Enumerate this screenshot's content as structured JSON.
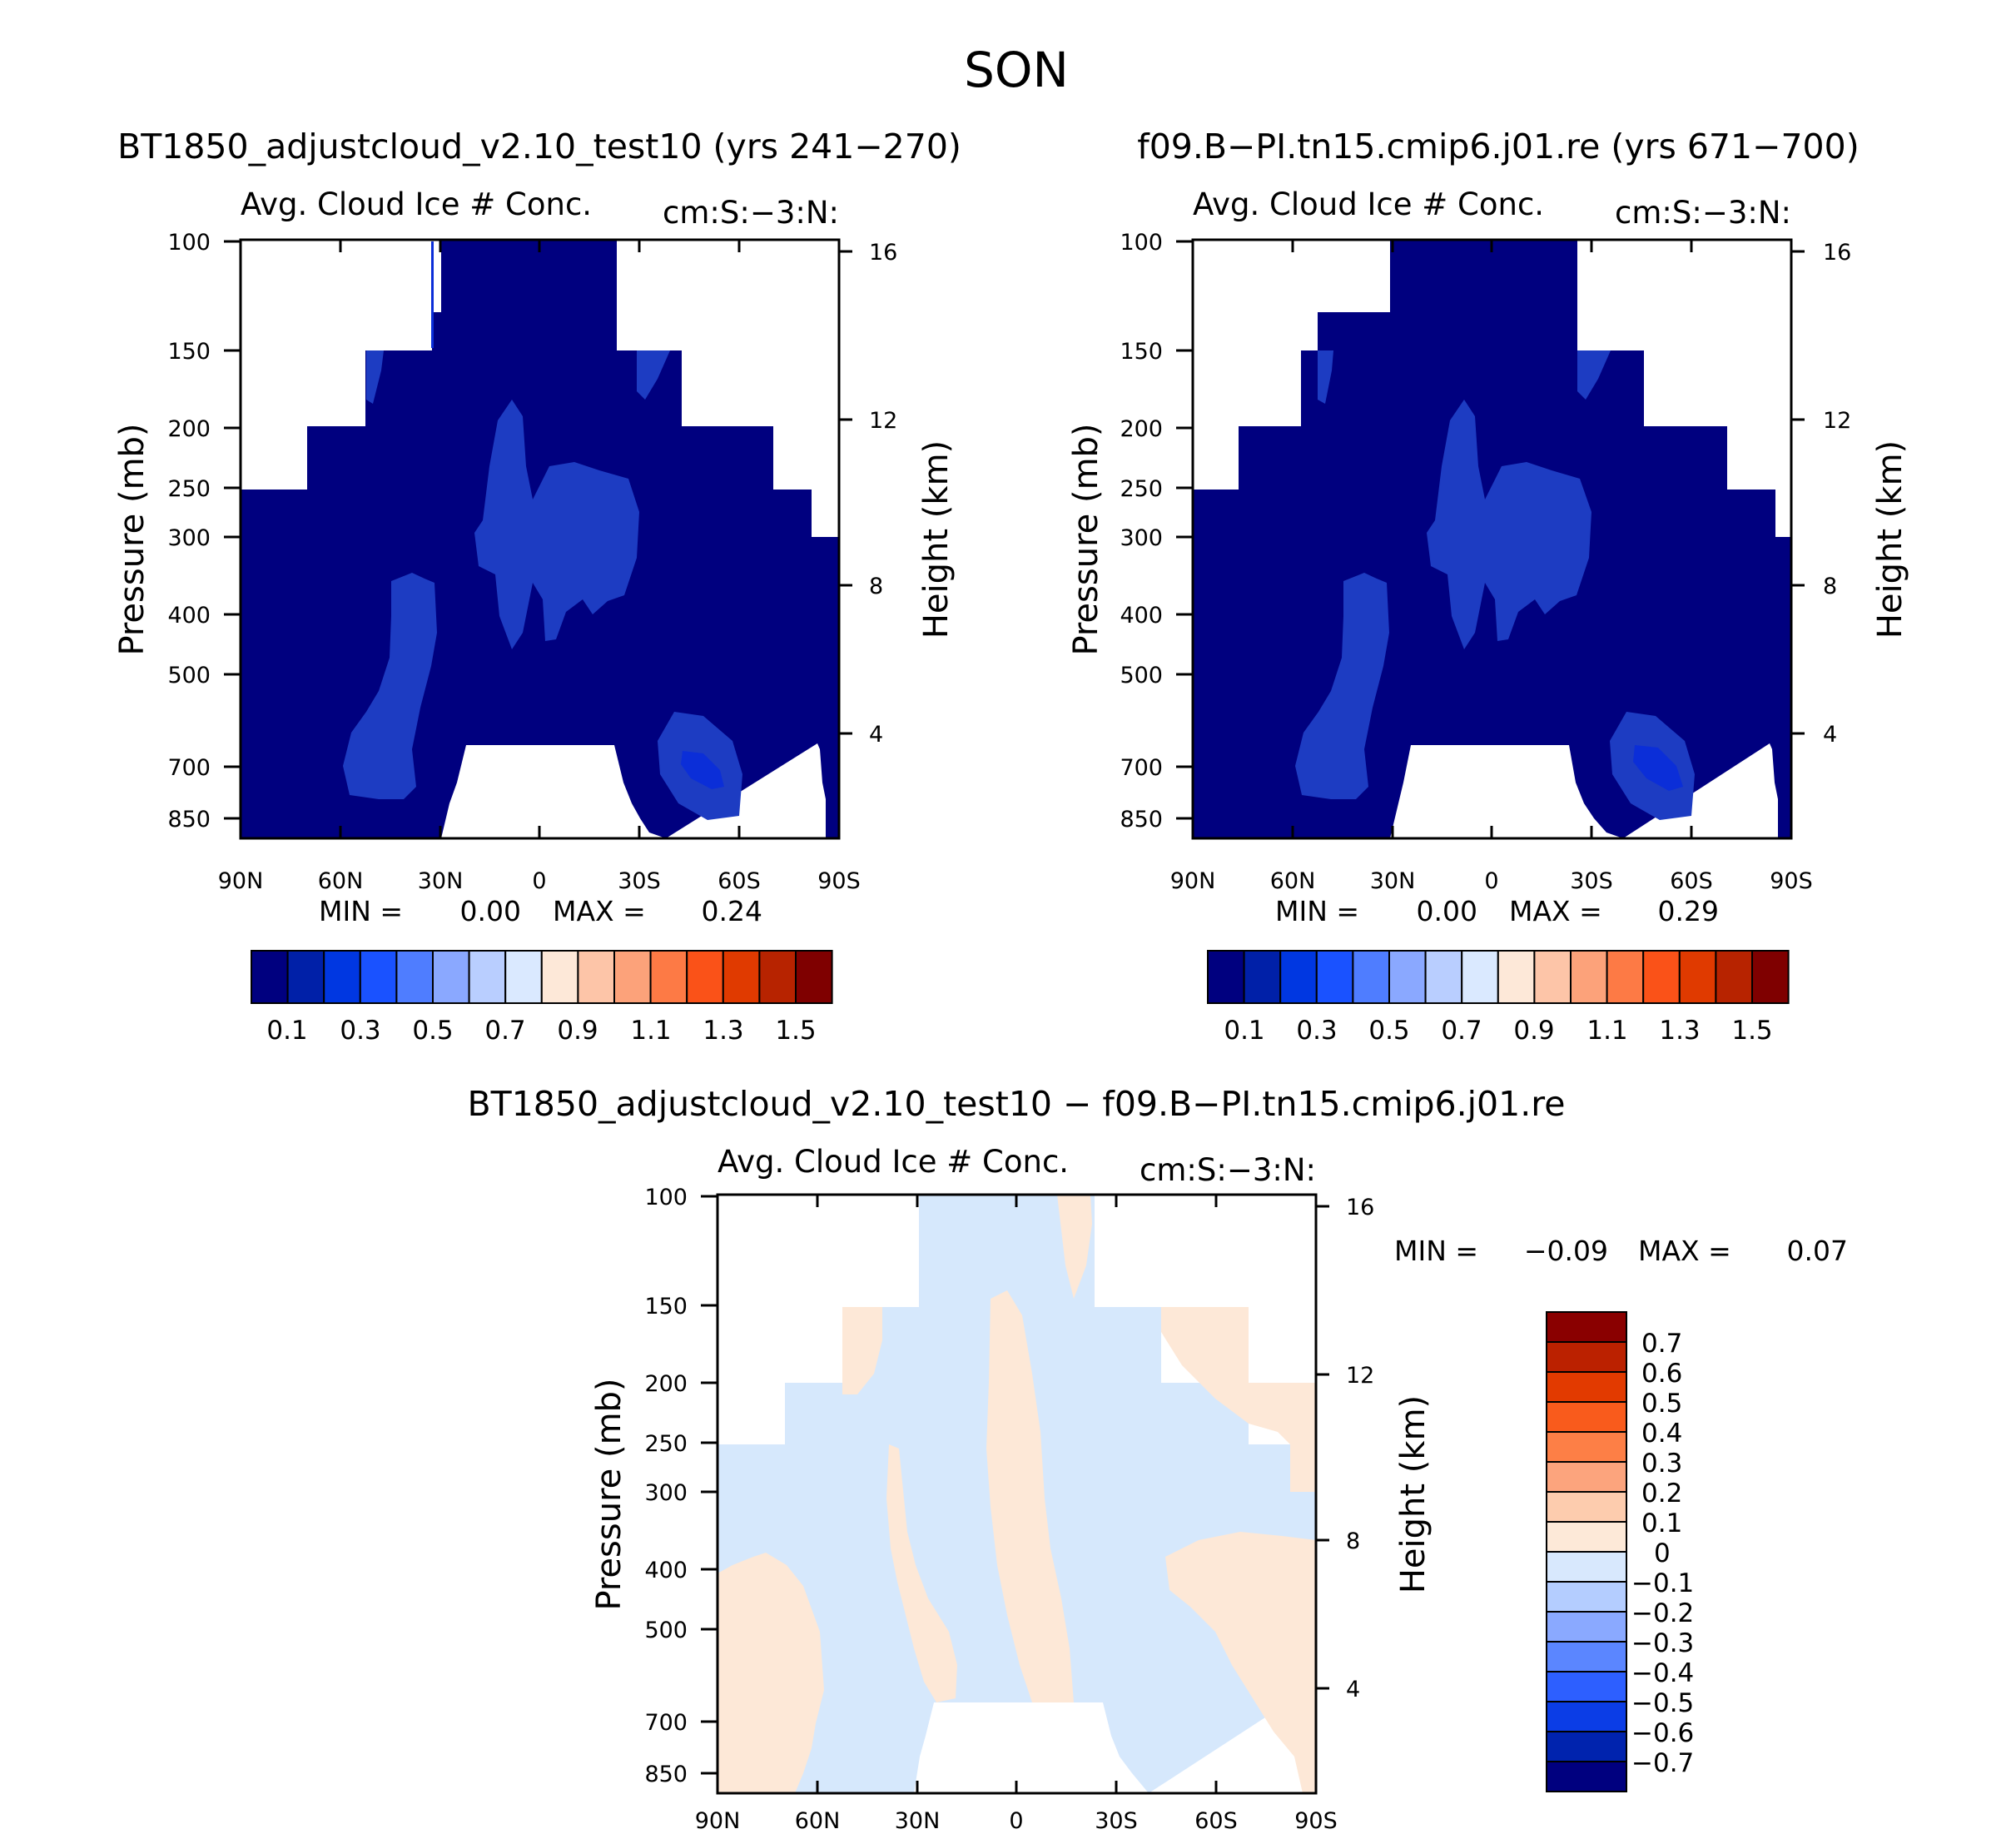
{
  "chart_data": {
    "type": "heatmap",
    "title": "SON",
    "panels": [
      {
        "id": "left",
        "title": "BT1850_adjustcloud_v2.10_test10 (yrs 241−270)",
        "left_string": "Avg. Cloud Ice # Conc.",
        "right_string": "cm:S:−3:N:",
        "ylabel": "Pressure (mb)",
        "ylabel_right": "Height (km)",
        "x_ticks": [
          "90N",
          "60N",
          "30N",
          "0",
          "30S",
          "60S",
          "90S"
        ],
        "y_ticks": [
          "100",
          "150",
          "200",
          "250",
          "300",
          "400",
          "500",
          "700",
          "850"
        ],
        "y_ticks_right": [
          "16",
          "12",
          "8",
          "4"
        ],
        "min_label": "MIN =",
        "min_value": "0.00",
        "max_label": "MAX =",
        "max_value": "0.24",
        "colorbar_labels": [
          "0.1",
          "0.3",
          "0.5",
          "0.7",
          "0.9",
          "1.1",
          "1.3",
          "1.5"
        ]
      },
      {
        "id": "right",
        "title": "f09.B−PI.tn15.cmip6.j01.re (yrs 671−700)",
        "left_string": "Avg. Cloud Ice # Conc.",
        "right_string": "cm:S:−3:N:",
        "ylabel": "Pressure (mb)",
        "ylabel_right": "Height (km)",
        "x_ticks": [
          "90N",
          "60N",
          "30N",
          "0",
          "30S",
          "60S",
          "90S"
        ],
        "y_ticks": [
          "100",
          "150",
          "200",
          "250",
          "300",
          "400",
          "500",
          "700",
          "850"
        ],
        "y_ticks_right": [
          "16",
          "12",
          "8",
          "4"
        ],
        "min_label": "MIN =",
        "min_value": "0.00",
        "max_label": "MAX =",
        "max_value": "0.29",
        "colorbar_labels": [
          "0.1",
          "0.3",
          "0.5",
          "0.7",
          "0.9",
          "1.1",
          "1.3",
          "1.5"
        ]
      },
      {
        "id": "diff",
        "title": "BT1850_adjustcloud_v2.10_test10 − f09.B−PI.tn15.cmip6.j01.re",
        "left_string": "Avg. Cloud Ice # Conc.",
        "right_string": "cm:S:−3:N:",
        "ylabel": "Pressure (mb)",
        "ylabel_right": "Height (km)",
        "x_ticks": [
          "90N",
          "60N",
          "30N",
          "0",
          "30S",
          "60S",
          "90S"
        ],
        "y_ticks": [
          "100",
          "150",
          "200",
          "250",
          "300",
          "400",
          "500",
          "700",
          "850"
        ],
        "y_ticks_right": [
          "16",
          "12",
          "8",
          "4"
        ],
        "min_label": "MIN =",
        "min_value": "−0.09",
        "max_label": "MAX =",
        "max_value": "0.07",
        "colorbar_labels": [
          "0.7",
          "0.6",
          "0.5",
          "0.4",
          "0.3",
          "0.2",
          "0.1",
          "0",
          "−0.1",
          "−0.2",
          "−0.3",
          "−0.4",
          "−0.5",
          "−0.6",
          "−0.7"
        ]
      }
    ],
    "x_range": [
      -90,
      90
    ],
    "y_range_mb": [
      100,
      925
    ]
  },
  "colors": {
    "seq_palette": [
      "#00007f",
      "#0020a8",
      "#0037e1",
      "#1a52ff",
      "#4f7dff",
      "#8aa8ff",
      "#b9ceff",
      "#dae9ff",
      "#fde8d8",
      "#fdc5a8",
      "#fca27a",
      "#fd7a45",
      "#fa5218",
      "#e03a00",
      "#b72300",
      "#7f0000"
    ],
    "diff_palette_top_down": [
      "#8a0000",
      "#bb2100",
      "#e23a00",
      "#f95b1c",
      "#fd7f46",
      "#fca47d",
      "#fdccae",
      "#fde9d8",
      "#d8e8fd",
      "#b4cdff",
      "#8aa9ff",
      "#5b86ff",
      "#2d5fff",
      "#0b3de6",
      "#0023ae",
      "#00007f"
    ],
    "base": "#00007f",
    "anomaly_light": "#1d3cc2",
    "anomaly_mid": "#0b2ed8",
    "diff_negative": "#d6e8fc",
    "diff_positive": "#fde8d7"
  }
}
